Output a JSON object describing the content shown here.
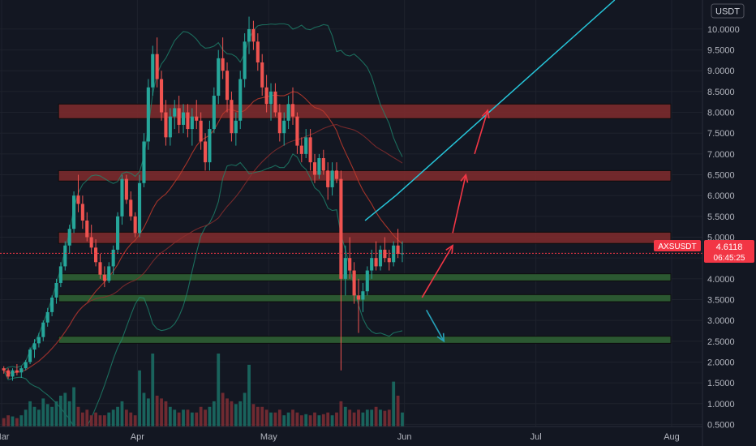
{
  "chart_data": {
    "type": "candlestick",
    "title": "",
    "symbol": "AXSUSDT",
    "currency": "USDT",
    "last_price": "4.6118",
    "countdown": "06:45:25",
    "ylim": [
      0.45,
      10.7
    ],
    "y_ticks": [
      "10.0000",
      "9.5000",
      "9.0000",
      "8.5000",
      "8.0000",
      "7.5000",
      "7.0000",
      "6.5000",
      "6.0000",
      "5.5000",
      "5.0000",
      "4.5000",
      "4.0000",
      "3.5000",
      "3.0000",
      "2.5000",
      "2.0000",
      "1.5000",
      "1.0000",
      "0.5000"
    ],
    "x_ticks": [
      {
        "label": "Mar",
        "day": 0
      },
      {
        "label": "Apr",
        "day": 31
      },
      {
        "label": "May",
        "day": 61
      },
      {
        "label": "Jun",
        "day": 92
      },
      {
        "label": "Jul",
        "day": 122
      },
      {
        "label": "Aug",
        "day": 153
      }
    ],
    "resistance_zones": [
      {
        "low": 7.85,
        "high": 8.2
      },
      {
        "low": 6.35,
        "high": 6.6
      },
      {
        "low": 4.85,
        "high": 5.12
      }
    ],
    "support_zones": [
      {
        "low": 3.95,
        "high": 4.12
      },
      {
        "low": 3.45,
        "high": 3.62
      },
      {
        "low": 2.45,
        "high": 2.62
      }
    ],
    "trend_line": [
      {
        "day": 83,
        "price": 5.4
      },
      {
        "day": 90,
        "price": 6.0
      },
      {
        "day": 140,
        "price": 10.7
      }
    ],
    "bullish_arrows": [
      {
        "from": [
          96,
          3.55
        ],
        "to": [
          103,
          4.8
        ]
      },
      {
        "from": [
          103,
          5.1
        ],
        "to": [
          106,
          6.5
        ]
      },
      {
        "from": [
          108,
          7.0
        ],
        "to": [
          111,
          8.05
        ]
      }
    ],
    "bearish_arrow": {
      "from": [
        97,
        3.25
      ],
      "to": [
        101,
        2.5
      ]
    },
    "candles": [
      [
        1.85,
        1.9,
        1.72,
        1.8
      ],
      [
        1.8,
        1.85,
        1.6,
        1.65
      ],
      [
        1.65,
        1.85,
        1.55,
        1.8
      ],
      [
        1.8,
        1.95,
        1.68,
        1.75
      ],
      [
        1.75,
        1.9,
        1.62,
        1.85
      ],
      [
        1.85,
        2.05,
        1.8,
        2.0
      ],
      [
        2.0,
        2.35,
        1.95,
        2.3
      ],
      [
        2.3,
        2.55,
        2.1,
        2.45
      ],
      [
        2.45,
        2.7,
        2.35,
        2.6
      ],
      [
        2.6,
        3.0,
        2.5,
        2.95
      ],
      [
        2.95,
        3.3,
        2.85,
        3.2
      ],
      [
        3.2,
        3.6,
        3.1,
        3.55
      ],
      [
        3.55,
        4.0,
        3.4,
        3.9
      ],
      [
        3.9,
        4.4,
        3.8,
        4.3
      ],
      [
        4.3,
        4.9,
        4.2,
        4.8
      ],
      [
        4.8,
        5.3,
        4.6,
        5.2
      ],
      [
        5.2,
        6.1,
        5.1,
        6.0
      ],
      [
        6.0,
        6.5,
        5.6,
        5.8
      ],
      [
        5.8,
        6.0,
        5.2,
        5.4
      ],
      [
        5.4,
        5.6,
        4.9,
        5.0
      ],
      [
        5.0,
        5.3,
        4.6,
        4.75
      ],
      [
        4.75,
        4.95,
        4.3,
        4.4
      ],
      [
        4.4,
        4.6,
        4.0,
        4.1
      ],
      [
        4.1,
        4.3,
        3.8,
        3.95
      ],
      [
        3.95,
        4.4,
        3.9,
        4.3
      ],
      [
        4.3,
        4.8,
        4.1,
        4.7
      ],
      [
        4.7,
        5.6,
        4.6,
        5.5
      ],
      [
        5.5,
        6.5,
        5.3,
        6.4
      ],
      [
        6.4,
        6.5,
        5.8,
        5.9
      ],
      [
        5.9,
        6.1,
        5.4,
        5.5
      ],
      [
        5.5,
        5.6,
        5.0,
        5.1
      ],
      [
        5.1,
        6.5,
        5.0,
        6.3
      ],
      [
        6.3,
        7.5,
        6.2,
        7.3
      ],
      [
        7.3,
        8.8,
        7.1,
        8.6
      ],
      [
        8.6,
        9.6,
        8.4,
        9.4
      ],
      [
        9.4,
        9.8,
        8.6,
        8.8
      ],
      [
        8.8,
        9.0,
        7.8,
        8.0
      ],
      [
        8.0,
        8.3,
        7.2,
        7.4
      ],
      [
        7.4,
        8.1,
        7.2,
        7.9
      ],
      [
        7.9,
        8.3,
        7.6,
        8.1
      ],
      [
        8.1,
        8.4,
        7.5,
        7.7
      ],
      [
        7.7,
        8.2,
        7.5,
        8.0
      ],
      [
        8.0,
        8.2,
        7.4,
        7.6
      ],
      [
        7.6,
        8.1,
        7.2,
        7.9
      ],
      [
        7.9,
        8.3,
        7.6,
        7.8
      ],
      [
        7.8,
        8.0,
        7.1,
        7.3
      ],
      [
        7.3,
        7.5,
        6.6,
        6.8
      ],
      [
        6.8,
        7.8,
        6.6,
        7.6
      ],
      [
        7.6,
        8.6,
        7.5,
        8.4
      ],
      [
        8.4,
        9.5,
        8.2,
        9.3
      ],
      [
        9.3,
        9.8,
        8.8,
        9.0
      ],
      [
        9.0,
        9.2,
        8.0,
        8.3
      ],
      [
        8.3,
        8.5,
        7.3,
        7.5
      ],
      [
        7.5,
        8.0,
        7.2,
        7.8
      ],
      [
        7.8,
        9.0,
        7.6,
        8.8
      ],
      [
        8.8,
        9.9,
        8.6,
        9.7
      ],
      [
        9.7,
        10.3,
        9.4,
        10.0
      ],
      [
        10.0,
        10.2,
        9.5,
        9.7
      ],
      [
        9.7,
        9.9,
        9.0,
        9.2
      ],
      [
        9.2,
        9.4,
        8.4,
        8.6
      ],
      [
        8.6,
        8.9,
        8.0,
        8.2
      ],
      [
        8.2,
        8.7,
        7.8,
        8.5
      ],
      [
        8.5,
        8.7,
        7.9,
        8.0
      ],
      [
        8.0,
        8.2,
        7.3,
        7.5
      ],
      [
        7.5,
        8.0,
        7.2,
        7.8
      ],
      [
        7.8,
        8.4,
        7.6,
        8.2
      ],
      [
        8.2,
        8.6,
        7.7,
        7.9
      ],
      [
        7.9,
        8.0,
        7.0,
        7.2
      ],
      [
        7.2,
        7.4,
        6.8,
        7.0
      ],
      [
        7.0,
        7.6,
        6.9,
        7.4
      ],
      [
        7.4,
        7.6,
        6.6,
        6.8
      ],
      [
        6.8,
        7.0,
        6.3,
        6.5
      ],
      [
        6.5,
        7.0,
        6.4,
        6.9
      ],
      [
        6.9,
        7.1,
        6.5,
        6.6
      ],
      [
        6.6,
        6.8,
        5.9,
        6.2
      ],
      [
        6.2,
        6.8,
        6.0,
        6.6
      ],
      [
        6.6,
        6.8,
        6.3,
        6.4
      ],
      [
        6.4,
        6.6,
        1.8,
        4.0
      ],
      [
        4.0,
        4.8,
        3.6,
        4.5
      ],
      [
        4.5,
        5.0,
        4.0,
        4.2
      ],
      [
        4.2,
        4.4,
        3.4,
        3.6
      ],
      [
        3.6,
        4.0,
        2.7,
        3.5
      ],
      [
        3.5,
        3.9,
        3.2,
        3.7
      ],
      [
        3.7,
        4.3,
        3.6,
        4.2
      ],
      [
        4.2,
        4.7,
        4.0,
        4.5
      ],
      [
        4.5,
        4.9,
        4.2,
        4.3
      ],
      [
        4.3,
        4.8,
        4.2,
        4.7
      ],
      [
        4.7,
        5.0,
        4.4,
        4.5
      ],
      [
        4.5,
        4.7,
        4.2,
        4.4
      ],
      [
        4.4,
        4.9,
        4.3,
        4.8
      ],
      [
        4.8,
        5.2,
        4.5,
        4.6
      ],
      [
        4.6,
        4.9,
        4.4,
        4.6118
      ]
    ],
    "volume": [
      0.15,
      0.2,
      0.18,
      0.15,
      0.2,
      0.3,
      0.45,
      0.35,
      0.3,
      0.5,
      0.4,
      0.35,
      0.45,
      0.55,
      0.6,
      0.45,
      0.7,
      0.35,
      0.25,
      0.3,
      0.2,
      0.25,
      0.2,
      0.2,
      0.25,
      0.3,
      0.35,
      0.45,
      0.3,
      0.25,
      0.2,
      1.0,
      0.6,
      0.5,
      1.3,
      0.55,
      0.5,
      0.45,
      0.35,
      0.3,
      0.25,
      0.3,
      0.3,
      0.25,
      0.25,
      0.35,
      0.3,
      0.35,
      0.45,
      1.3,
      0.6,
      0.5,
      0.45,
      0.4,
      0.45,
      0.6,
      1.1,
      0.4,
      0.35,
      0.35,
      0.3,
      0.25,
      0.25,
      0.3,
      0.2,
      0.25,
      0.3,
      0.25,
      0.2,
      0.22,
      0.2,
      0.25,
      0.2,
      0.22,
      0.25,
      0.2,
      0.25,
      0.45,
      0.35,
      0.3,
      0.25,
      0.3,
      0.25,
      0.3,
      0.3,
      0.35,
      0.3,
      0.28,
      0.3,
      0.8,
      0.55,
      0.25
    ]
  }
}
